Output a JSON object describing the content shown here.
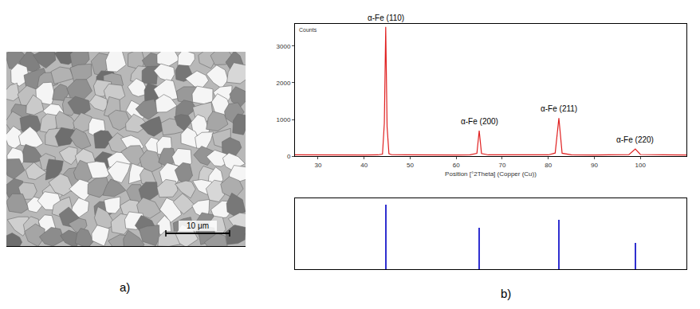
{
  "panels": {
    "a": {
      "label": "a)",
      "scale_bar": "10 μm"
    },
    "b": {
      "label": "b)"
    }
  },
  "chart_data": [
    {
      "type": "line",
      "x_title": "Position [°2Theta] (Copper (Cu))",
      "y_title": "Counts",
      "x": [
        25,
        30,
        35,
        40,
        43,
        44,
        44.4,
        44.7,
        45,
        45.4,
        46,
        50,
        55,
        60,
        63,
        64.5,
        65,
        65.5,
        67,
        70,
        75,
        80,
        81.5,
        82.3,
        83,
        85,
        90,
        95,
        97.5,
        98.9,
        100,
        105,
        110
      ],
      "values": [
        40,
        35,
        38,
        36,
        40,
        60,
        900,
        3520,
        800,
        70,
        45,
        38,
        40,
        36,
        42,
        80,
        700,
        75,
        40,
        38,
        36,
        40,
        90,
        1040,
        85,
        42,
        38,
        36,
        45,
        200,
        50,
        40,
        38
      ],
      "color": "#e02020",
      "xlim": [
        25,
        110
      ],
      "xticks": [
        30,
        40,
        50,
        60,
        70,
        80,
        90,
        100
      ],
      "ylim": [
        0,
        3600
      ],
      "yticks": [
        0,
        1000,
        2000,
        3000
      ],
      "annotations": [
        {
          "text": "α-Fe (110)",
          "x": 44.7
        },
        {
          "text": "α-Fe (200)",
          "x": 65
        },
        {
          "text": "α-Fe (211)",
          "x": 82.3
        },
        {
          "text": "α-Fe (220)",
          "x": 98.9
        }
      ]
    },
    {
      "type": "bar",
      "x": [
        44.7,
        65,
        82.3,
        98.9
      ],
      "values": [
        100,
        64,
        76,
        41
      ],
      "color": "#3030d0",
      "xlim": [
        25,
        110
      ],
      "ylim": [
        0,
        110
      ],
      "tick_labels": false
    }
  ]
}
